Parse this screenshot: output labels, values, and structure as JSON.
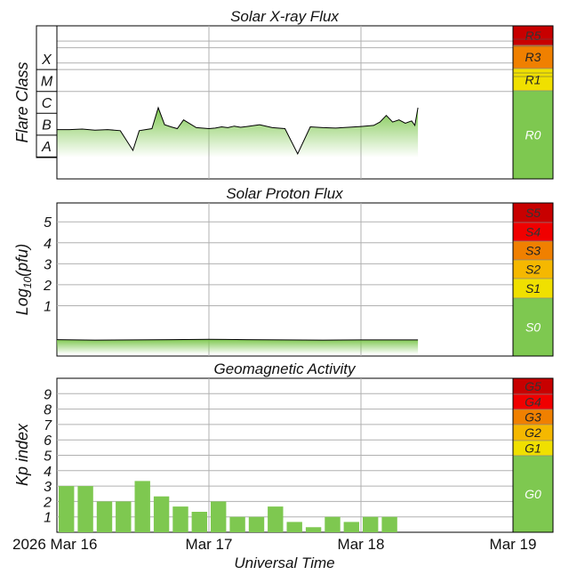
{
  "colors": {
    "green": "#7ec850",
    "yellow": "#f0e000",
    "amber": "#f5b800",
    "orange": "#f08000",
    "red": "#f00000",
    "dark_red": "#c80000",
    "grid": "#b0b0b0"
  },
  "chart_data": [
    {
      "type": "area",
      "title": "Solar X-ray Flux",
      "ylabel": "Flare Class",
      "scale": "log",
      "xlim": [
        "2026-03-16 00:00",
        "2026-03-19 00:00"
      ],
      "ylim": [
        1e-09,
        0.01
      ],
      "yticks": [
        {
          "label": "A",
          "value": 1e-08
        },
        {
          "label": "B",
          "value": 1e-07
        },
        {
          "label": "C",
          "value": 1e-06
        },
        {
          "label": "M",
          "value": 1e-05
        },
        {
          "label": "X",
          "value": 0.0001
        }
      ],
      "scale_labels": [
        "R5",
        "R3",
        "R1",
        "R0"
      ],
      "x_hours": [
        0,
        2,
        4,
        6,
        8,
        10,
        12,
        13,
        14,
        15,
        16,
        17,
        18,
        19,
        20,
        22,
        24,
        25,
        26,
        27,
        28,
        29,
        30,
        32,
        34,
        36,
        38,
        40,
        42,
        44,
        46,
        48,
        50,
        51,
        52,
        53,
        54,
        55,
        56,
        56.5,
        57
      ],
      "values": [
        1.8e-07,
        1.8e-07,
        1.9e-07,
        1.7e-07,
        1.8e-07,
        1.6e-07,
        2e-08,
        1.6e-07,
        1.8e-07,
        2e-07,
        1.8e-06,
        3e-07,
        2.4e-07,
        2e-07,
        5e-07,
        2.2e-07,
        2e-07,
        2.1e-07,
        2.4e-07,
        2.2e-07,
        2.6e-07,
        2.3e-07,
        2.5e-07,
        3e-07,
        2.2e-07,
        2e-07,
        1.4e-08,
        2.4e-07,
        2.2e-07,
        2.1e-07,
        2.3e-07,
        2.5e-07,
        2.8e-07,
        4e-07,
        8e-07,
        4e-07,
        5e-07,
        3.5e-07,
        4.5e-07,
        2.8e-07,
        1.8e-06
      ]
    },
    {
      "type": "area",
      "title": "Solar Proton Flux",
      "ylabel": "Log10(pfu)",
      "ylabel_main": "Log",
      "ylabel_sub": "10",
      "ylabel_tail": "(pfu)",
      "ylim": [
        -1.4,
        5.9
      ],
      "yticks": [
        1,
        2,
        3,
        4,
        5
      ],
      "scale_labels": [
        "S5",
        "S4",
        "S3",
        "S2",
        "S1",
        "S0"
      ],
      "x_hours": [
        0,
        6,
        12,
        18,
        24,
        30,
        36,
        42,
        48,
        54,
        57
      ],
      "values": [
        -0.62,
        -0.64,
        -0.63,
        -0.62,
        -0.6,
        -0.62,
        -0.63,
        -0.64,
        -0.63,
        -0.63,
        -0.63
      ]
    },
    {
      "type": "bar",
      "title": "Geomagnetic Activity",
      "ylabel": "Kp index",
      "ylim": [
        0,
        10
      ],
      "yticks": [
        1,
        2,
        3,
        4,
        5,
        6,
        7,
        8,
        9
      ],
      "scale_labels": [
        "G5",
        "G4",
        "G3",
        "G2",
        "G1",
        "G0"
      ],
      "xlabel": "Universal Time",
      "x_tick_labels": [
        "2026 Mar 16",
        "Mar 17",
        "Mar 18",
        "Mar 19"
      ],
      "bar_hours": 3,
      "values": [
        3.0,
        3.0,
        2.0,
        2.0,
        3.33,
        2.33,
        1.67,
        1.33,
        2.0,
        1.0,
        1.0,
        1.67,
        0.67,
        0.33,
        1.0,
        0.67,
        1.0,
        1.0
      ]
    }
  ]
}
